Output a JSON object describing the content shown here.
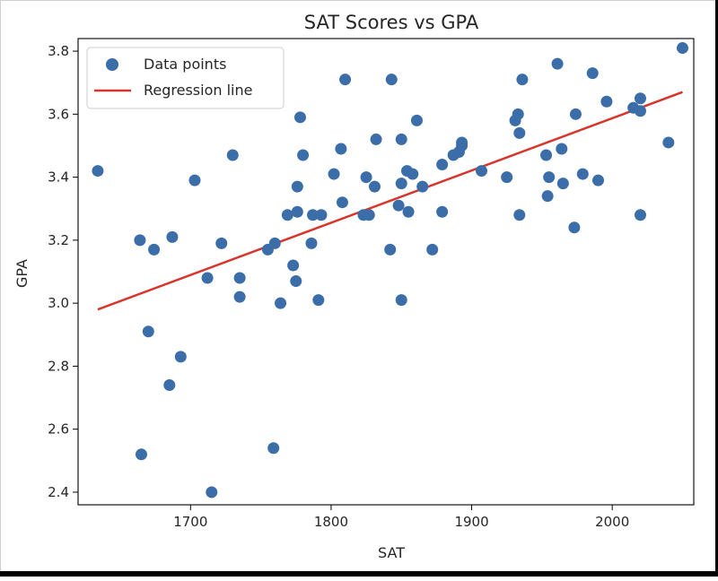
{
  "chart_data": {
    "type": "scatter",
    "title": "SAT Scores vs GPA",
    "xlabel": "SAT",
    "ylabel": "GPA",
    "xlim": [
      1620,
      2058
    ],
    "ylim": [
      2.36,
      3.84
    ],
    "xticks": [
      1700,
      1800,
      1900,
      2000
    ],
    "yticks": [
      2.4,
      2.6,
      2.8,
      3.0,
      3.2,
      3.4,
      3.6,
      3.8
    ],
    "xtick_labels": [
      "1700",
      "1800",
      "1900",
      "2000"
    ],
    "ytick_labels": [
      "2.4",
      "2.6",
      "2.8",
      "3.0",
      "3.2",
      "3.4",
      "3.6",
      "3.8"
    ],
    "grid": false,
    "legend": {
      "position": "top-left",
      "entries": [
        "Data points",
        "Regression line"
      ]
    },
    "series": [
      {
        "name": "Data points",
        "type": "scatter",
        "color": "#3b6ea8",
        "points": [
          [
            1634,
            3.42
          ],
          [
            1664,
            3.2
          ],
          [
            1665,
            2.52
          ],
          [
            1670,
            2.91
          ],
          [
            1674,
            3.17
          ],
          [
            1685,
            2.74
          ],
          [
            1687,
            3.21
          ],
          [
            1693,
            2.83
          ],
          [
            1703,
            3.39
          ],
          [
            1712,
            3.08
          ],
          [
            1715,
            2.4
          ],
          [
            1722,
            3.19
          ],
          [
            1730,
            3.47
          ],
          [
            1735,
            3.08
          ],
          [
            1735,
            3.02
          ],
          [
            1755,
            3.17
          ],
          [
            1759,
            2.54
          ],
          [
            1760,
            3.19
          ],
          [
            1764,
            3.0
          ],
          [
            1769,
            3.28
          ],
          [
            1773,
            3.12
          ],
          [
            1775,
            3.07
          ],
          [
            1776,
            3.29
          ],
          [
            1776,
            3.37
          ],
          [
            1778,
            3.59
          ],
          [
            1780,
            3.47
          ],
          [
            1786,
            3.19
          ],
          [
            1787,
            3.28
          ],
          [
            1791,
            3.01
          ],
          [
            1793,
            3.28
          ],
          [
            1802,
            3.41
          ],
          [
            1807,
            3.49
          ],
          [
            1808,
            3.32
          ],
          [
            1810,
            3.71
          ],
          [
            1823,
            3.28
          ],
          [
            1825,
            3.4
          ],
          [
            1827,
            3.28
          ],
          [
            1831,
            3.37
          ],
          [
            1832,
            3.52
          ],
          [
            1842,
            3.17
          ],
          [
            1843,
            3.71
          ],
          [
            1848,
            3.31
          ],
          [
            1850,
            3.01
          ],
          [
            1850,
            3.52
          ],
          [
            1850,
            3.38
          ],
          [
            1854,
            3.42
          ],
          [
            1855,
            3.29
          ],
          [
            1858,
            3.41
          ],
          [
            1861,
            3.58
          ],
          [
            1865,
            3.37
          ],
          [
            1872,
            3.17
          ],
          [
            1879,
            3.29
          ],
          [
            1879,
            3.44
          ],
          [
            1887,
            3.47
          ],
          [
            1891,
            3.48
          ],
          [
            1893,
            3.51
          ],
          [
            1893,
            3.5
          ],
          [
            1907,
            3.42
          ],
          [
            1925,
            3.4
          ],
          [
            1931,
            3.58
          ],
          [
            1933,
            3.6
          ],
          [
            1934,
            3.54
          ],
          [
            1934,
            3.28
          ],
          [
            1936,
            3.71
          ],
          [
            1953,
            3.47
          ],
          [
            1954,
            3.34
          ],
          [
            1955,
            3.4
          ],
          [
            1961,
            3.76
          ],
          [
            1964,
            3.49
          ],
          [
            1965,
            3.38
          ],
          [
            1973,
            3.24
          ],
          [
            1974,
            3.6
          ],
          [
            1979,
            3.41
          ],
          [
            1986,
            3.73
          ],
          [
            1990,
            3.39
          ],
          [
            1996,
            3.64
          ],
          [
            2015,
            3.62
          ],
          [
            2020,
            3.28
          ],
          [
            2020,
            3.65
          ],
          [
            2020,
            3.61
          ],
          [
            2040,
            3.51
          ],
          [
            2050,
            3.81
          ]
        ]
      },
      {
        "name": "Regression line",
        "type": "line",
        "color": "#d9342b",
        "points": [
          [
            1634,
            2.98
          ],
          [
            2050,
            3.67
          ]
        ]
      }
    ]
  }
}
